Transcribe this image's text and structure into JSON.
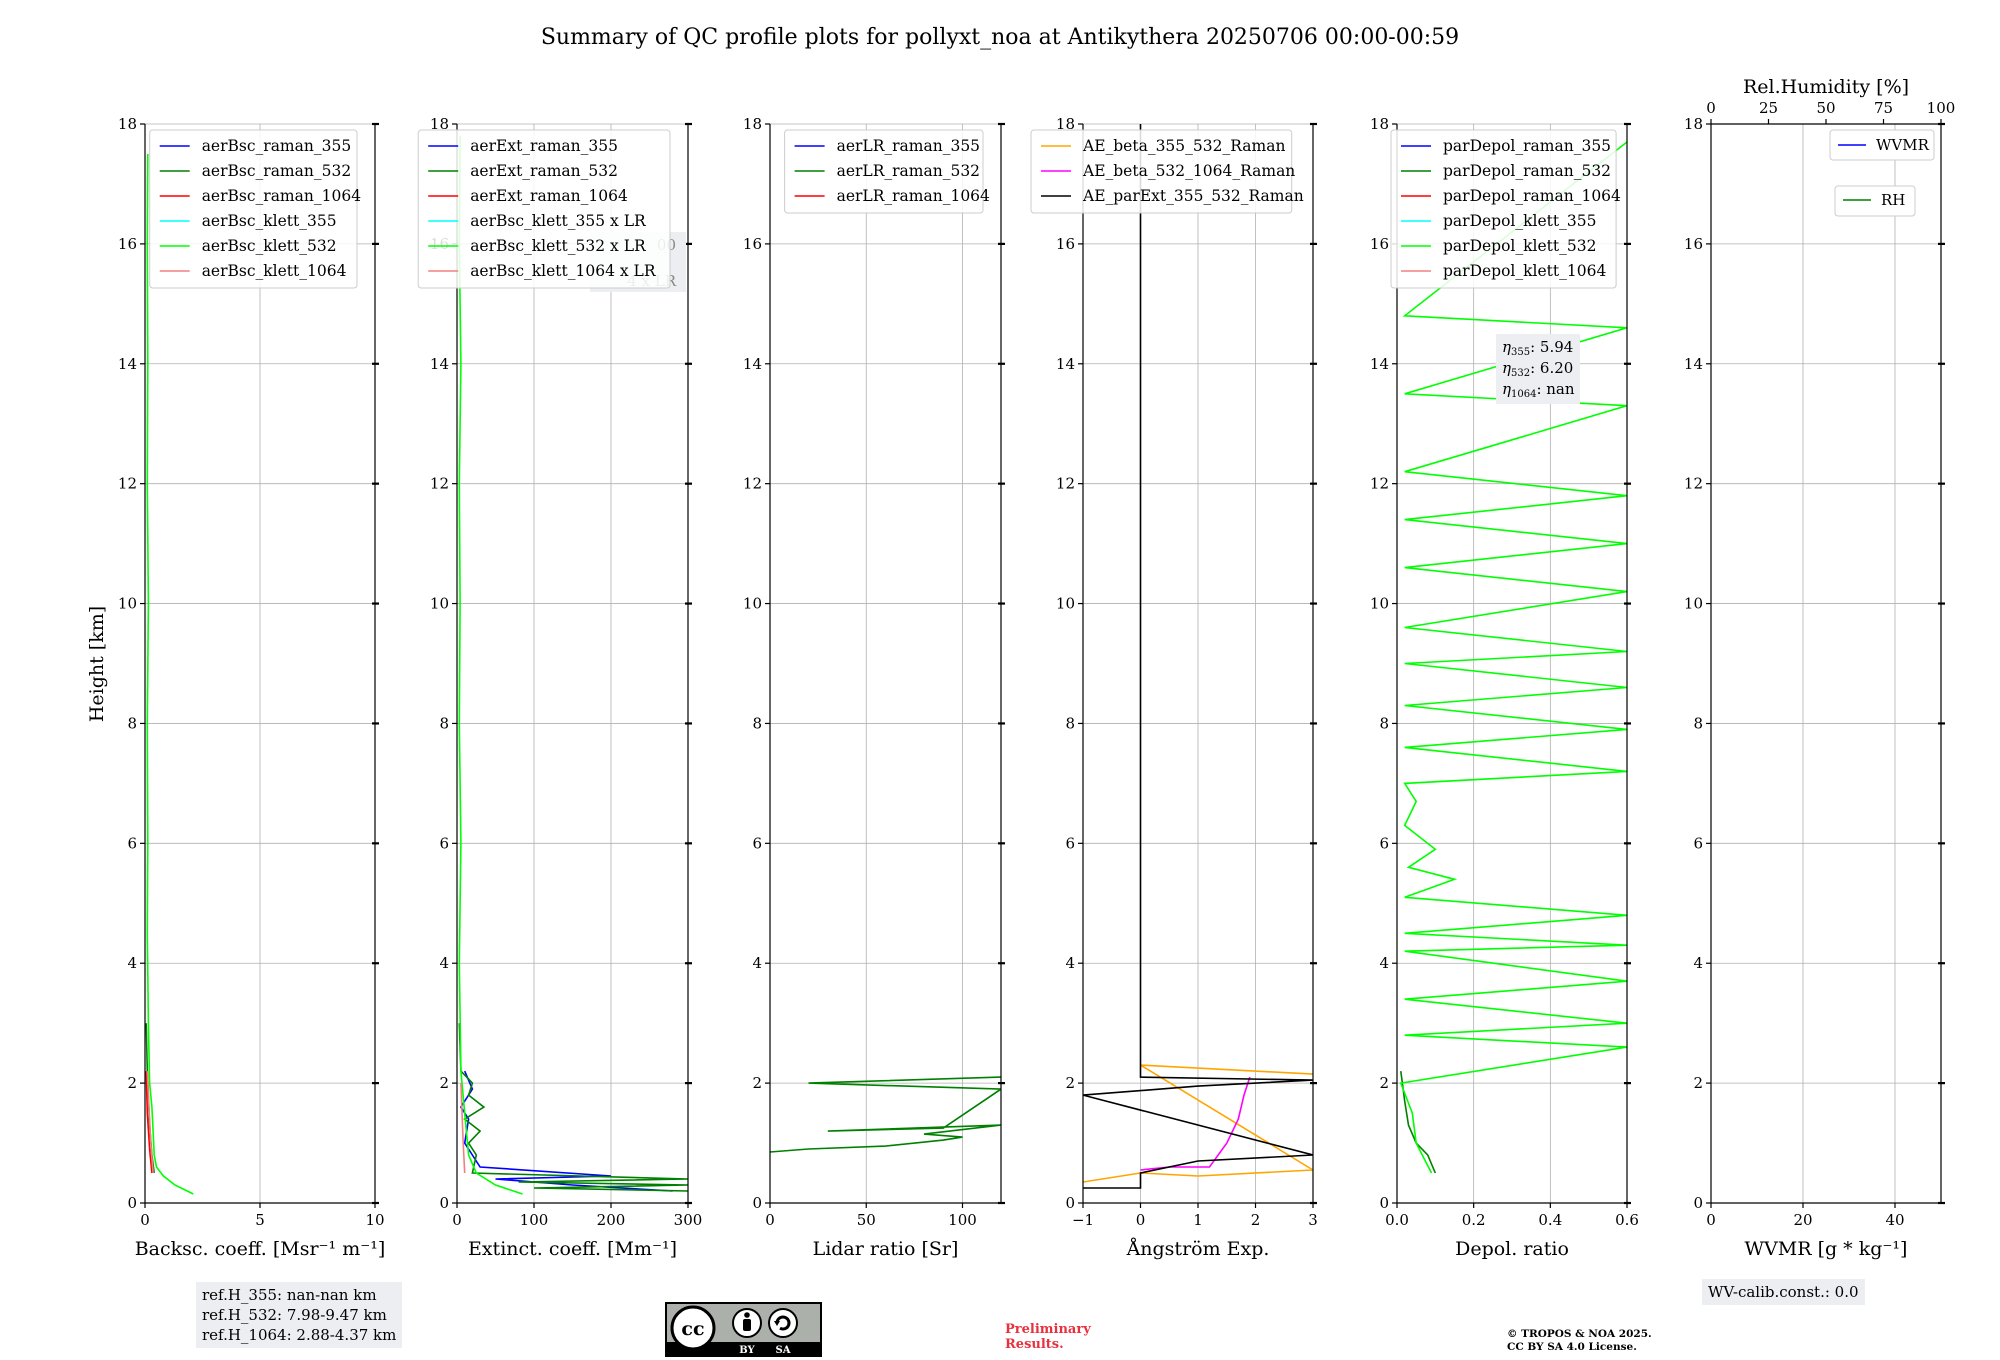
{
  "figure_title": "Summary of QC profile plots for pollyxt_noa at Antikythera 20250706 00:00-00:59",
  "y_axis_label": "Height [km]",
  "chart_data": [
    {
      "type": "line",
      "xlabel": "Backsc. coeff. [Msr⁻¹ m⁻¹]",
      "xlim": [
        0,
        10
      ],
      "xticks": [
        0,
        5,
        10
      ],
      "ylim": [
        0,
        18
      ],
      "yticks": [
        0,
        2,
        4,
        6,
        8,
        10,
        12,
        14,
        16,
        18
      ],
      "grid": true,
      "legend_position": "top-right",
      "series": [
        {
          "name": "aerBsc_raman_355",
          "color": "#0000ff",
          "points": []
        },
        {
          "name": "aerBsc_raman_532",
          "color": "#008000",
          "points": [
            [
              0.4,
              0.5
            ],
            [
              0.3,
              0.8
            ],
            [
              0.2,
              1.3
            ],
            [
              0.1,
              2.2
            ],
            [
              0.05,
              3.0
            ]
          ]
        },
        {
          "name": "aerBsc_raman_1064",
          "color": "#ff0000",
          "points": [
            [
              0.3,
              0.5
            ],
            [
              0.2,
              0.9
            ],
            [
              0.1,
              1.5
            ],
            [
              0.05,
              2.2
            ]
          ]
        },
        {
          "name": "aerBsc_klett_355",
          "color": "#00ffff",
          "points": []
        },
        {
          "name": "aerBsc_klett_532",
          "color": "#00ff00",
          "points": [
            [
              2.1,
              0.15
            ],
            [
              1.3,
              0.3
            ],
            [
              0.8,
              0.45
            ],
            [
              0.5,
              0.6
            ],
            [
              0.4,
              0.8
            ],
            [
              0.35,
              1.2
            ],
            [
              0.3,
              1.6
            ],
            [
              0.2,
              2.0
            ],
            [
              0.15,
              3.0
            ],
            [
              0.1,
              4.5
            ],
            [
              0.12,
              6
            ],
            [
              0.1,
              8
            ],
            [
              0.15,
              10
            ],
            [
              0.1,
              12
            ],
            [
              0.12,
              14
            ],
            [
              0.1,
              16
            ],
            [
              0.12,
              17.5
            ]
          ]
        },
        {
          "name": "aerBsc_klett_1064",
          "color": "#f08080",
          "points": [
            [
              0.35,
              0.5
            ],
            [
              0.25,
              1.0
            ],
            [
              0.15,
              1.8
            ],
            [
              0.1,
              2.2
            ]
          ]
        }
      ]
    },
    {
      "type": "line",
      "xlabel": "Extinct. coeff. [Mm⁻¹]",
      "xlim": [
        0,
        300
      ],
      "xticks": [
        0,
        100,
        200,
        300
      ],
      "ylim": [
        0,
        18
      ],
      "yticks": [
        0,
        2,
        4,
        6,
        8,
        10,
        12,
        14,
        16,
        18
      ],
      "grid": true,
      "legend_position": "top-right",
      "series": [
        {
          "name": "aerExt_raman_355",
          "color": "#0000ff",
          "points": [
            [
              280,
              0.2
            ],
            [
              150,
              0.3
            ],
            [
              50,
              0.4
            ],
            [
              200,
              0.45
            ],
            [
              30,
              0.6
            ],
            [
              10,
              1.0
            ],
            [
              15,
              1.4
            ],
            [
              5,
              1.6
            ],
            [
              20,
              1.9
            ],
            [
              10,
              2.2
            ]
          ]
        },
        {
          "name": "aerExt_raman_532",
          "color": "#008000",
          "points": [
            [
              300,
              0.2
            ],
            [
              100,
              0.25
            ],
            [
              300,
              0.3
            ],
            [
              80,
              0.35
            ],
            [
              300,
              0.4
            ],
            [
              20,
              0.5
            ],
            [
              25,
              0.8
            ],
            [
              15,
              1.0
            ],
            [
              30,
              1.2
            ],
            [
              10,
              1.4
            ],
            [
              35,
              1.6
            ],
            [
              15,
              1.8
            ],
            [
              20,
              2.0
            ],
            [
              5,
              2.2
            ],
            [
              3,
              3.0
            ]
          ]
        },
        {
          "name": "aerExt_raman_1064",
          "color": "#ff0000",
          "points": []
        },
        {
          "name": "aerBsc_klett_355 x LR",
          "color": "#00ffff",
          "points": []
        },
        {
          "name": "aerBsc_klett_532 x LR",
          "color": "#00ff00",
          "points": [
            [
              85,
              0.15
            ],
            [
              50,
              0.3
            ],
            [
              25,
              0.5
            ],
            [
              15,
              0.8
            ],
            [
              10,
              1.5
            ],
            [
              5,
              2.2
            ],
            [
              3,
              4
            ],
            [
              5,
              6
            ],
            [
              3,
              8
            ],
            [
              4,
              10
            ],
            [
              3,
              12
            ],
            [
              5,
              14
            ],
            [
              3,
              16
            ],
            [
              4,
              17.8
            ]
          ]
        },
        {
          "name": "aerBsc_klett_1064 x LR",
          "color": "#f08080",
          "points": [
            [
              10,
              0.5
            ],
            [
              8,
              1.0
            ],
            [
              5,
              2.0
            ]
          ]
        }
      ],
      "annotation_lines": [
        "00",
        "4 x LR"
      ]
    },
    {
      "type": "line",
      "xlabel": "Lidar ratio [Sr]",
      "xlim": [
        0,
        120
      ],
      "xticks": [
        0,
        50,
        100
      ],
      "ylim": [
        0,
        18
      ],
      "yticks": [
        0,
        2,
        4,
        6,
        8,
        10,
        12,
        14,
        16,
        18
      ],
      "grid": true,
      "legend_position": "top-right",
      "series": [
        {
          "name": "aerLR_raman_355",
          "color": "#0000ff",
          "points": []
        },
        {
          "name": "aerLR_raman_532",
          "color": "#008000",
          "points": [
            [
              0,
              0.85
            ],
            [
              20,
              0.9
            ],
            [
              60,
              0.95
            ],
            [
              90,
              1.05
            ],
            [
              100,
              1.1
            ],
            [
              80,
              1.15
            ],
            [
              120,
              1.3
            ],
            [
              30,
              1.2
            ],
            [
              90,
              1.25
            ],
            [
              120,
              1.9
            ],
            [
              20,
              2.0
            ],
            [
              120,
              2.1
            ]
          ]
        },
        {
          "name": "aerLR_raman_1064",
          "color": "#ff0000",
          "points": []
        }
      ]
    },
    {
      "type": "line",
      "xlabel": "Ångström Exp.",
      "xlim": [
        -1,
        3
      ],
      "xticks": [
        -1,
        0,
        1,
        2,
        3
      ],
      "ylim": [
        0,
        18
      ],
      "yticks": [
        0,
        2,
        4,
        6,
        8,
        10,
        12,
        14,
        16,
        18
      ],
      "grid": true,
      "legend_position": "top-left",
      "series": [
        {
          "name": "AE_beta_355_532_Raman",
          "color": "#ffa500",
          "points": [
            [
              -1,
              0.35
            ],
            [
              0,
              0.5
            ],
            [
              1,
              0.45
            ],
            [
              3,
              0.55
            ],
            [
              0,
              2.3
            ],
            [
              3,
              2.15
            ]
          ]
        },
        {
          "name": "AE_beta_532_1064_Raman",
          "color": "#ff00ff",
          "points": [
            [
              0,
              0.55
            ],
            [
              0.5,
              0.6
            ],
            [
              1.2,
              0.6
            ],
            [
              1.5,
              1.0
            ],
            [
              1.7,
              1.4
            ],
            [
              1.8,
              1.8
            ],
            [
              1.9,
              2.1
            ]
          ]
        },
        {
          "name": "AE_parExt_355_532_Raman",
          "color": "#000000",
          "points": [
            [
              -1,
              0.25
            ],
            [
              0,
              0.25
            ],
            [
              0,
              0.5
            ],
            [
              1,
              0.7
            ],
            [
              3,
              0.8
            ],
            [
              -1,
              1.8
            ],
            [
              1,
              1.95
            ],
            [
              3,
              2.05
            ],
            [
              0,
              2.1
            ],
            [
              0,
              18
            ]
          ]
        }
      ]
    },
    {
      "type": "line",
      "xlabel": "Depol. ratio",
      "xlim": [
        0,
        0.6
      ],
      "xticks": [
        0.0,
        0.2,
        0.4,
        0.6
      ],
      "ylim": [
        0,
        18
      ],
      "yticks": [
        0,
        2,
        4,
        6,
        8,
        10,
        12,
        14,
        16,
        18
      ],
      "grid": true,
      "legend_position": "top-left",
      "series": [
        {
          "name": "parDepol_raman_355",
          "color": "#0000ff",
          "points": []
        },
        {
          "name": "parDepol_raman_532",
          "color": "#008000",
          "points": [
            [
              0.1,
              0.5
            ],
            [
              0.08,
              0.8
            ],
            [
              0.05,
              1.0
            ],
            [
              0.03,
              1.3
            ],
            [
              0.02,
              1.7
            ],
            [
              0.01,
              2.2
            ]
          ]
        },
        {
          "name": "parDepol_raman_1064",
          "color": "#ff0000",
          "points": []
        },
        {
          "name": "parDepol_klett_355",
          "color": "#00ffff",
          "points": []
        },
        {
          "name": "parDepol_klett_532",
          "color": "#00ff00",
          "points": [
            [
              0.09,
              0.5
            ],
            [
              0.05,
              1.0
            ],
            [
              0.04,
              1.5
            ],
            [
              0.01,
              2.0
            ],
            [
              0.6,
              2.6
            ],
            [
              0.02,
              2.8
            ],
            [
              0.6,
              3.0
            ],
            [
              0.02,
              3.4
            ],
            [
              0.6,
              3.7
            ],
            [
              0.02,
              4.2
            ],
            [
              0.6,
              4.3
            ],
            [
              0.02,
              4.5
            ],
            [
              0.6,
              4.8
            ],
            [
              0.02,
              5.1
            ],
            [
              0.15,
              5.4
            ],
            [
              0.03,
              5.6
            ],
            [
              0.1,
              5.9
            ],
            [
              0.02,
              6.3
            ],
            [
              0.05,
              6.7
            ],
            [
              0.02,
              7.0
            ],
            [
              0.6,
              7.2
            ],
            [
              0.02,
              7.6
            ],
            [
              0.6,
              7.9
            ],
            [
              0.02,
              8.3
            ],
            [
              0.6,
              8.6
            ],
            [
              0.02,
              9.0
            ],
            [
              0.6,
              9.2
            ],
            [
              0.02,
              9.6
            ],
            [
              0.6,
              10.2
            ],
            [
              0.02,
              10.6
            ],
            [
              0.6,
              11.0
            ],
            [
              0.02,
              11.4
            ],
            [
              0.6,
              11.8
            ],
            [
              0.02,
              12.2
            ],
            [
              0.6,
              13.3
            ],
            [
              0.02,
              13.5
            ],
            [
              0.6,
              14.6
            ],
            [
              0.02,
              14.8
            ],
            [
              0.6,
              17.7
            ]
          ]
        },
        {
          "name": "parDepol_klett_1064",
          "color": "#f08080",
          "points": []
        }
      ],
      "annotation": [
        {
          "symbol": "η",
          "subscript": "355",
          "value": ": 5.94"
        },
        {
          "symbol": "η",
          "subscript": "532",
          "value": ": 6.20"
        },
        {
          "symbol": "η",
          "subscript": "1064",
          "value": ": nan"
        }
      ]
    },
    {
      "type": "line",
      "xlabel": "WVMR [g * kg⁻¹]",
      "xlim": [
        0,
        50
      ],
      "xticks": [
        0,
        20,
        40
      ],
      "top_xlabel": "Rel.Humidity [%]",
      "top_xlim": [
        0,
        100
      ],
      "top_xticks": [
        0,
        25,
        50,
        75,
        100
      ],
      "ylim": [
        0,
        18
      ],
      "yticks": [
        0,
        2,
        4,
        6,
        8,
        10,
        12,
        14,
        16,
        18
      ],
      "grid": true,
      "legend_position": "top-right",
      "series": [
        {
          "name": "WVMR",
          "color": "#0000ff",
          "points": []
        },
        {
          "name": "RH",
          "color": "#008000",
          "points": []
        }
      ]
    }
  ],
  "info_boxes": {
    "ref_heights": [
      "ref.H_355: nan-nan km",
      "ref.H_532: 7.98-9.47 km",
      "ref.H_1064: 2.88-4.37 km"
    ],
    "wv_calib": "WV-calib.const.: 0.0"
  },
  "footer": {
    "license_badge": {
      "cc": "cc",
      "by": "BY",
      "sa": "SA"
    },
    "preliminary": [
      "Preliminary",
      "Results."
    ],
    "copyright": [
      "© TROPOS & NOA 2025.",
      "CC BY SA 4.0 License."
    ]
  }
}
